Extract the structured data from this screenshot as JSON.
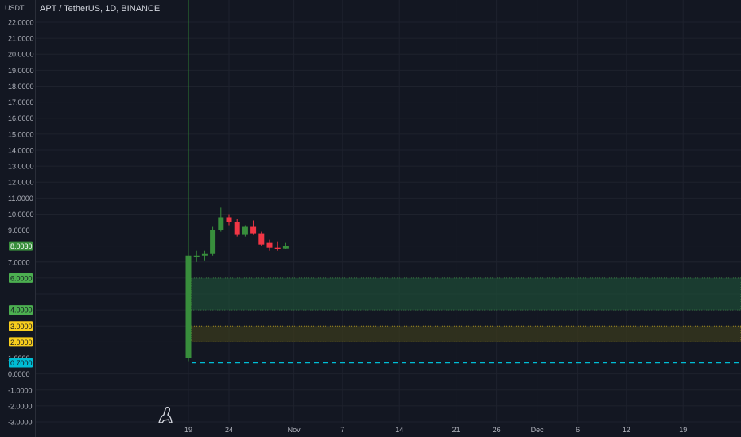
{
  "header": {
    "unit": "USDT",
    "title": "APT / TetherUS, 1D, BINANCE"
  },
  "colors": {
    "background": "#131722",
    "grid": "#1e222d",
    "up": "#26a69a",
    "up_candle": "#388e3c",
    "down": "#f23645",
    "axis_text": "#b2b5be",
    "zone_green": "#1b5e20",
    "zone_yellow": "#f9ce1d",
    "dashed_line": "#00bcd4"
  },
  "icons": {
    "logo": "dinosaur-logo-icon"
  },
  "chart_data": {
    "type": "candlestick",
    "y_ticks": [
      "22.0000",
      "21.0000",
      "20.0000",
      "19.0000",
      "18.0000",
      "17.0000",
      "16.0000",
      "15.0000",
      "14.0000",
      "13.0000",
      "12.0000",
      "11.0000",
      "10.0000",
      "9.0000",
      "7.0000",
      "1.0000",
      "0.0000",
      "-1.0000",
      "-2.0000",
      "-3.0000"
    ],
    "y_tick_values": [
      22,
      21,
      20,
      19,
      18,
      17,
      16,
      15,
      14,
      13,
      12,
      11,
      10,
      9,
      7,
      1,
      0,
      -1,
      -2,
      -3
    ],
    "ylim": [
      -3,
      22.5
    ],
    "x_ticks": [
      "19",
      "24",
      "Nov",
      "7",
      "14",
      "21",
      "26",
      "Dec",
      "6",
      "12",
      "19"
    ],
    "x_tick_days": [
      19,
      24,
      32,
      38,
      45,
      52,
      57,
      62,
      67,
      73,
      80
    ],
    "xlim": [
      9,
      90
    ],
    "candles": [
      {
        "day": 19,
        "open": 1.0,
        "high": 7.4,
        "low": 0.8,
        "close": 7.4
      },
      {
        "day": 20,
        "open": 7.3,
        "high": 7.7,
        "low": 7.0,
        "close": 7.4
      },
      {
        "day": 21,
        "open": 7.4,
        "high": 7.7,
        "low": 7.1,
        "close": 7.5
      },
      {
        "day": 22,
        "open": 7.5,
        "high": 9.2,
        "low": 7.4,
        "close": 9.0
      },
      {
        "day": 23,
        "open": 9.0,
        "high": 10.4,
        "low": 8.9,
        "close": 9.8
      },
      {
        "day": 24,
        "open": 9.8,
        "high": 10.0,
        "low": 9.3,
        "close": 9.5
      },
      {
        "day": 25,
        "open": 9.5,
        "high": 9.7,
        "low": 8.6,
        "close": 8.7
      },
      {
        "day": 26,
        "open": 8.7,
        "high": 9.3,
        "low": 8.6,
        "close": 9.2
      },
      {
        "day": 27,
        "open": 9.2,
        "high": 9.6,
        "low": 8.7,
        "close": 8.8
      },
      {
        "day": 28,
        "open": 8.8,
        "high": 8.9,
        "low": 8.0,
        "close": 8.1
      },
      {
        "day": 29,
        "open": 8.2,
        "high": 8.4,
        "low": 7.7,
        "close": 7.9
      },
      {
        "day": 30,
        "open": 7.9,
        "high": 8.3,
        "low": 7.7,
        "close": 7.85
      },
      {
        "day": 31,
        "open": 7.85,
        "high": 8.2,
        "low": 7.8,
        "close": 8.0
      }
    ],
    "price_labels": [
      {
        "text": "8.0030",
        "value": 8.003,
        "color": "#388e3c",
        "text_color": "#ffffff"
      },
      {
        "text": "6.0000",
        "value": 6.0,
        "color": "#4caf50",
        "text_color": "#131722"
      },
      {
        "text": "4.0000",
        "value": 4.0,
        "color": "#4caf50",
        "text_color": "#131722"
      },
      {
        "text": "3.0000",
        "value": 3.0,
        "color": "#f9ce1d",
        "text_color": "#131722"
      },
      {
        "text": "2.0000",
        "value": 2.0,
        "color": "#f9ce1d",
        "text_color": "#131722"
      },
      {
        "text": "0.7000",
        "value": 0.7,
        "color": "#00bcd4",
        "text_color": "#131722"
      }
    ],
    "zones": [
      {
        "from": 4.0,
        "to": 6.0,
        "start_day": 19,
        "color": "#1e4a36"
      },
      {
        "from": 2.0,
        "to": 3.0,
        "start_day": 19,
        "color": "#3a3a1e"
      }
    ],
    "dashed_level": 0.7,
    "current_price_line": 8.003,
    "vertical_marker_day": 19
  }
}
